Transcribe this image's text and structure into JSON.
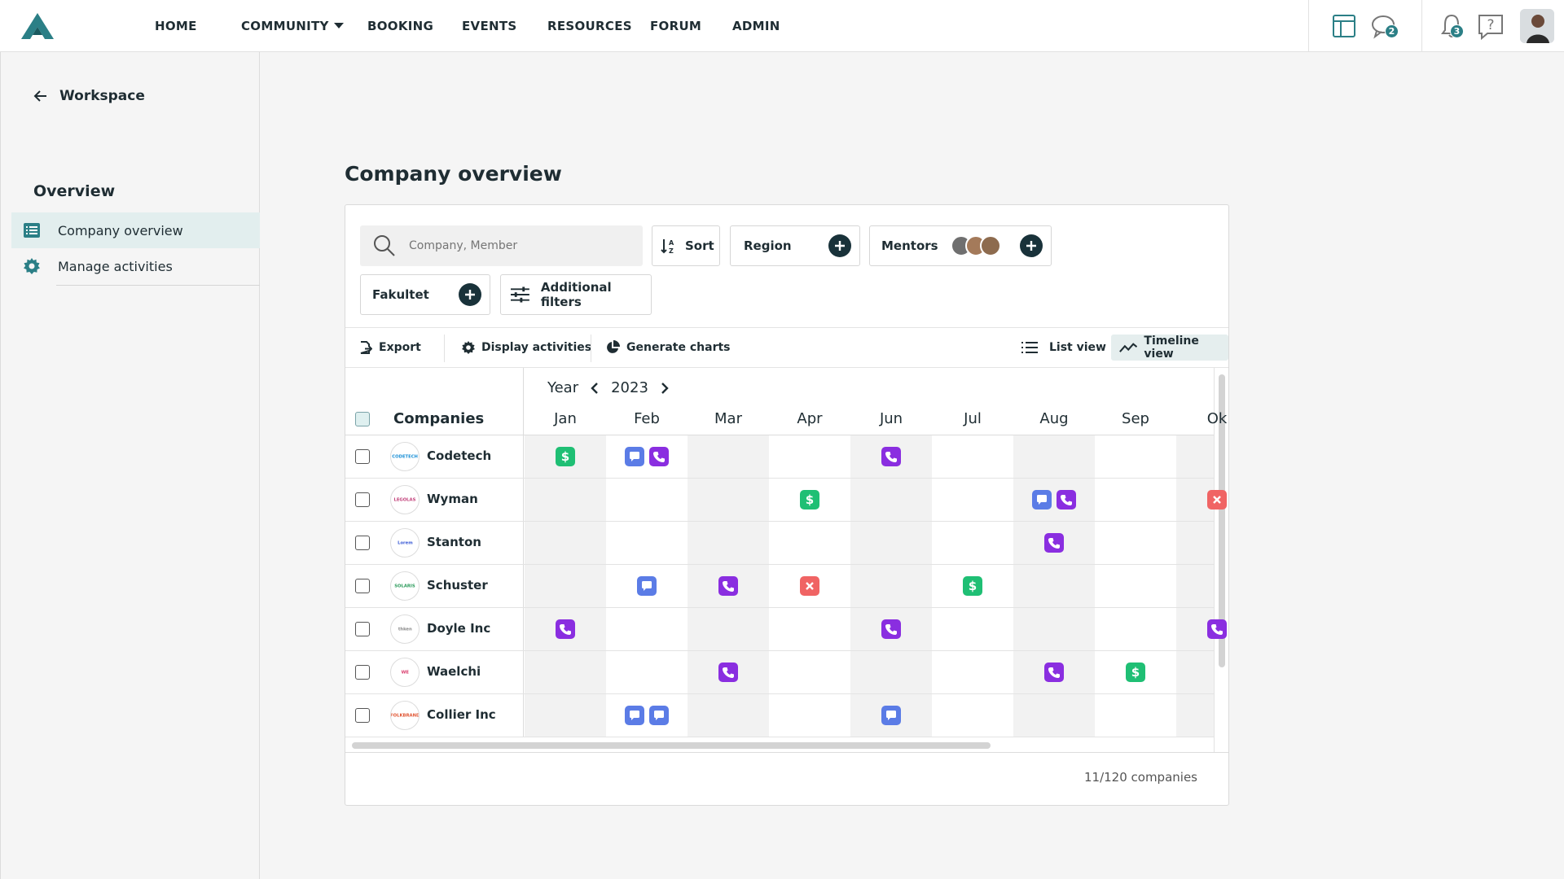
{
  "nav": {
    "items": [
      "HOME",
      "COMMUNITY",
      "BOOKING",
      "EVENTS",
      "RESOURCES",
      "FORUM",
      "ADMIN"
    ],
    "messages_badge": "2",
    "notifications_badge": "3"
  },
  "sidebar": {
    "back_label": "Workspace",
    "heading": "Overview",
    "items": [
      {
        "label": "Company overview",
        "icon": "list-icon",
        "active": true
      },
      {
        "label": "Manage activities",
        "icon": "gear-icon",
        "active": false
      }
    ]
  },
  "page": {
    "title": "Company overview"
  },
  "filters": {
    "search_placeholder": "Company, Member",
    "sort_label": "Sort",
    "region_label": "Region",
    "mentors_label": "Mentors",
    "faculty_label": "Fakultet",
    "additional_label": "Additional filters"
  },
  "toolbar": {
    "export": "Export",
    "display_activities": "Display activities",
    "generate_charts": "Generate charts",
    "list_view": "List view",
    "timeline_view": "Timeline view"
  },
  "timeline": {
    "period_label": "Year",
    "year": "2023",
    "companies_header": "Companies",
    "months": [
      "Jan",
      "Feb",
      "Mar",
      "Apr",
      "Jun",
      "Jul",
      "Aug",
      "Sep",
      "Ok"
    ],
    "rows": [
      {
        "name": "Codetech",
        "logo_text": "CODETECH",
        "logo_color": "#1a8fd6",
        "activities": [
          {
            "m": 0,
            "types": [
              "money"
            ]
          },
          {
            "m": 1,
            "types": [
              "chat",
              "phone"
            ]
          },
          {
            "m": 4,
            "types": [
              "phone"
            ]
          }
        ]
      },
      {
        "name": "Wyman",
        "logo_text": "LEGOLAS",
        "logo_color": "#c2407a",
        "activities": [
          {
            "m": 3,
            "types": [
              "money"
            ]
          },
          {
            "m": 6,
            "types": [
              "chat",
              "phone"
            ]
          },
          {
            "m": 8,
            "types": [
              "cancel"
            ]
          }
        ]
      },
      {
        "name": "Stanton",
        "logo_text": "Lorem",
        "logo_color": "#3b5bd6",
        "activities": [
          {
            "m": 6,
            "types": [
              "phone"
            ]
          }
        ]
      },
      {
        "name": "Schuster",
        "logo_text": "SOLARIS",
        "logo_color": "#2a9a5a",
        "activities": [
          {
            "m": 1,
            "types": [
              "chat"
            ]
          },
          {
            "m": 2,
            "types": [
              "phone"
            ]
          },
          {
            "m": 3,
            "types": [
              "cancel"
            ]
          },
          {
            "m": 5,
            "types": [
              "money"
            ]
          }
        ]
      },
      {
        "name": "Doyle Inc",
        "logo_text": "thken",
        "logo_color": "#888888",
        "activities": [
          {
            "m": 0,
            "types": [
              "phone"
            ]
          },
          {
            "m": 4,
            "types": [
              "phone"
            ]
          },
          {
            "m": 8,
            "types": [
              "phone"
            ]
          }
        ]
      },
      {
        "name": "Waelchi",
        "logo_text": "WE",
        "logo_color": "#d93a6b",
        "activities": [
          {
            "m": 2,
            "types": [
              "phone"
            ]
          },
          {
            "m": 6,
            "types": [
              "phone"
            ]
          },
          {
            "m": 7,
            "types": [
              "money"
            ]
          }
        ]
      },
      {
        "name": "Collier Inc",
        "logo_text": "FOLKBRAND",
        "logo_color": "#e0522f",
        "activities": [
          {
            "m": 1,
            "types": [
              "chat",
              "chat"
            ]
          },
          {
            "m": 4,
            "types": [
              "chat"
            ]
          }
        ]
      }
    ]
  },
  "footer": {
    "count": "11/120 companies"
  },
  "colors": {
    "accent": "#2b7f86",
    "dark": "#19323a",
    "money": "#1fbf74",
    "phone": "#8a2ee0",
    "chat": "#5b7ce6",
    "cancel": "#f06464"
  }
}
